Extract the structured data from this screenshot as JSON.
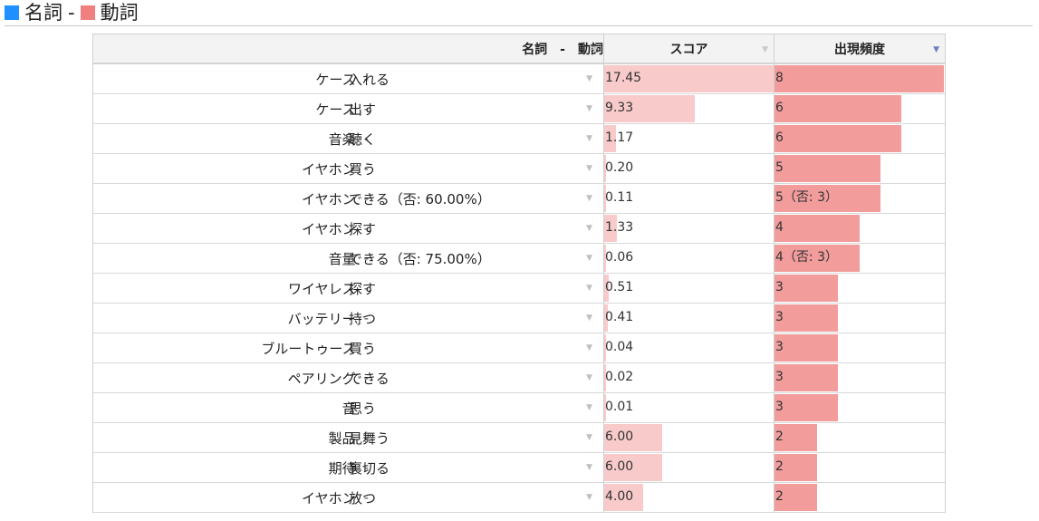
{
  "legend": {
    "noun_color": "#1e90ff",
    "noun_label": "名詞",
    "separator": "-",
    "verb_color": "#f08080",
    "verb_label": "動詞"
  },
  "table": {
    "headers": {
      "pair": "名詞　-　動詞",
      "score": "スコア",
      "freq": "出現頻度"
    },
    "sorted_by": "出現頻度",
    "score_max": 17.45,
    "freq_max": 8,
    "rows": [
      {
        "noun": "ケース",
        "verb": "入れる",
        "score": "17.45",
        "score_num": 17.45,
        "freq": "8",
        "freq_num": 8
      },
      {
        "noun": "ケース",
        "verb": "出す",
        "score": "9.33",
        "score_num": 9.33,
        "freq": "6",
        "freq_num": 6
      },
      {
        "noun": "音楽",
        "verb": "聴く",
        "score": "1.17",
        "score_num": 1.17,
        "freq": "6",
        "freq_num": 6
      },
      {
        "noun": "イヤホン",
        "verb": "買う",
        "score": "0.20",
        "score_num": 0.2,
        "freq": "5",
        "freq_num": 5
      },
      {
        "noun": "イヤホン",
        "verb": "できる（否: 60.00%）",
        "score": "0.11",
        "score_num": 0.11,
        "freq": "5（否: 3）",
        "freq_num": 5
      },
      {
        "noun": "イヤホン",
        "verb": "探す",
        "score": "1.33",
        "score_num": 1.33,
        "freq": "4",
        "freq_num": 4
      },
      {
        "noun": "音量",
        "verb": "できる（否: 75.00%）",
        "score": "0.06",
        "score_num": 0.06,
        "freq": "4（否: 3）",
        "freq_num": 4
      },
      {
        "noun": "ワイヤレス",
        "verb": "探す",
        "score": "0.51",
        "score_num": 0.51,
        "freq": "3",
        "freq_num": 3
      },
      {
        "noun": "バッテリー",
        "verb": "持つ",
        "score": "0.41",
        "score_num": 0.41,
        "freq": "3",
        "freq_num": 3
      },
      {
        "noun": "ブルートゥース",
        "verb": "買う",
        "score": "0.04",
        "score_num": 0.04,
        "freq": "3",
        "freq_num": 3
      },
      {
        "noun": "ペアリング",
        "verb": "できる",
        "score": "0.02",
        "score_num": 0.02,
        "freq": "3",
        "freq_num": 3
      },
      {
        "noun": "音",
        "verb": "思う",
        "score": "0.01",
        "score_num": 0.01,
        "freq": "3",
        "freq_num": 3
      },
      {
        "noun": "製品",
        "verb": "見舞う",
        "score": "6.00",
        "score_num": 6.0,
        "freq": "2",
        "freq_num": 2
      },
      {
        "noun": "期待",
        "verb": "裏切る",
        "score": "6.00",
        "score_num": 6.0,
        "freq": "2",
        "freq_num": 2
      },
      {
        "noun": "イヤホン",
        "verb": "放つ",
        "score": "4.00",
        "score_num": 4.0,
        "freq": "2",
        "freq_num": 2
      }
    ]
  }
}
